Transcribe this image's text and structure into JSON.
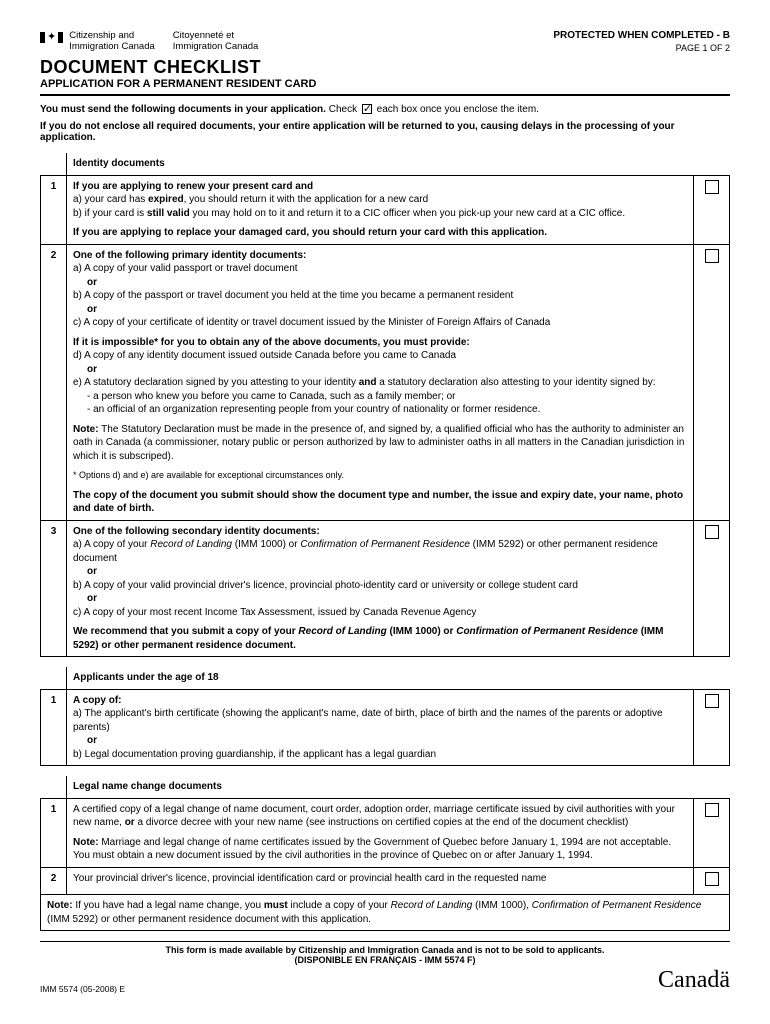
{
  "header": {
    "dept_en_1": "Citizenship and",
    "dept_en_2": "Immigration Canada",
    "dept_fr_1": "Citoyenneté et",
    "dept_fr_2": "Immigration Canada",
    "protected": "PROTECTED WHEN COMPLETED - B",
    "page": "PAGE 1 OF 2",
    "title": "DOCUMENT CHECKLIST",
    "subtitle": "APPLICATION FOR A PERMANENT RESIDENT CARD"
  },
  "intro": {
    "line1_a": "You must send the following documents in your application.",
    "line1_b": "Check",
    "line1_c": "each box once you enclose the item.",
    "line2": "If you do not enclose all required documents, your entire application will be returned to you, causing delays in the processing of your application."
  },
  "sections": {
    "identity": {
      "title": "Identity documents",
      "r1": {
        "num": "1",
        "head": "If you are applying to renew your present card and",
        "a": "a) your card has ",
        "a_b": "expired",
        "a2": ", you should return it with the application for a new card",
        "b": "b) if your card is ",
        "b_b": "still valid",
        "b2": " you may hold on to it and return it to a CIC officer when you pick-up your new card at a CIC office.",
        "foot": "If you are applying to replace your damaged card, you should return your card with this application."
      },
      "r2": {
        "num": "2",
        "head": "One of the following primary identity documents:",
        "a": "a)   A copy of your valid passport or travel document",
        "or": "or",
        "b": "b)   A copy of the passport or travel document you held at the time you became a permanent resident",
        "c": "c)   A copy of your certificate of identity or travel document issued by the Minister of Foreign Affairs of Canada",
        "impossible": "If it is impossible* for you to obtain any of the above documents, you must provide:",
        "d": "d)   A copy of any identity document issued outside Canada before you came to Canada",
        "e_pre": "e)   A statutory declaration signed by you attesting to your identity ",
        "e_and": "and",
        "e_post": " a statutory declaration also attesting to your identity signed by:",
        "e1": "- a person who knew you before you came to Canada, such as a family member; or",
        "e2": "- an official of an organization representing people from your country of nationality or former residence.",
        "note_b": "Note:",
        "note": " The Statutory Declaration must be made in the presence of, and signed by, a qualified official who has the authority to administer an oath in Canada (a commissioner, notary public or person authorized by law to administer oaths in all matters in the Canadian jurisdiction in which it is subscriped).",
        "star": "* Options d) and e) are available for exceptional circumstances only.",
        "copy": "The copy of the document you submit should show the document type and number, the issue and expiry date, your name, photo and date of birth."
      },
      "r3": {
        "num": "3",
        "head": "One of the following secondary identity documents:",
        "a_pre": "a)   A copy of your ",
        "a_i1": "Record of Landing",
        "a_mid1": " (IMM 1000) or ",
        "a_i2": "Confirmation of Permanent Residence",
        "a_post": " (IMM 5292) or other permanent residence document",
        "or": "or",
        "b": "b)   A copy of your valid provincial driver's licence, provincial photo-identity card or university or college student card",
        "c": "c)   A copy of your most recent Income Tax Assessment, issued by Canada Revenue Agency",
        "rec_pre": "We recommend that you submit a copy of your ",
        "rec_i1": "Record of Landing",
        "rec_mid1": " (IMM 1000) or ",
        "rec_i2": "Confirmation of Permanent Residence",
        "rec_post": " (IMM 5292) or other permanent residence document."
      }
    },
    "under18": {
      "title": "Applicants under the age of 18",
      "r1": {
        "num": "1",
        "head": "A copy of:",
        "a": "a)   The applicant's birth certificate (showing the applicant's name, date of birth, place of birth and the names of the parents or adoptive parents)",
        "or": "or",
        "b": "b)   Legal documentation proving guardianship, if the applicant has a legal guardian"
      }
    },
    "legal": {
      "title": "Legal name change documents",
      "r1": {
        "num": "1",
        "body_a": "A certified copy of a legal change of name document, court order, adoption order, marriage certificate issued by civil authorities with your new name, ",
        "body_or": "or",
        "body_b": " a divorce decree with your new name  (see instructions on certified copies at the end of the document checklist)",
        "note_b": "Note:",
        "note": " Marriage and legal change of name certificates issued by the Government of Quebec before January 1, 1994 are not acceptable. You must obtain a new document issued by the civil authorities in the province of Quebec on or after January 1, 1994."
      },
      "r2": {
        "num": "2",
        "body": "Your provincial driver's licence, provincial identification card or provincial health card in the requested name"
      },
      "note_pre": "Note:",
      "note_a": " If you have had a legal name change, you ",
      "note_must": "must",
      "note_b": " include a copy of your ",
      "note_i1": "Record of Landing",
      "note_mid1": " (IMM 1000), ",
      "note_i2": "Confirmation of Permanent Residence",
      "note_post": " (IMM 5292) or other permanent residence document with this application."
    }
  },
  "footer": {
    "line1": "This form is made available by Citizenship and Immigration Canada and is not to be sold to applicants.",
    "line2": "(DISPONIBLE EN FRANÇAIS - IMM 5574 F)",
    "code": "IMM 5574 (05-2008) E",
    "wordmark": "Canadä"
  }
}
